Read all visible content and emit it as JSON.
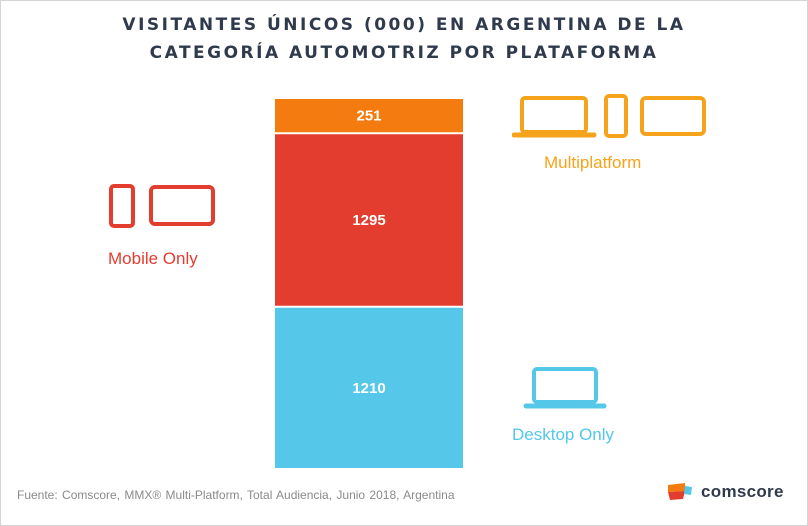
{
  "title_lines": [
    "VISITANTES ÚNICOS (000) EN ARGENTINA DE LA",
    "CATEGORÍA AUTOMOTRIZ POR PLATAFORMA"
  ],
  "chart_data": {
    "type": "bar",
    "stacked": true,
    "unit": "Visitantes únicos (000)",
    "categories": [
      ""
    ],
    "series": [
      {
        "name": "Desktop Only",
        "values": [
          1210
        ],
        "color": "#55c7e8"
      },
      {
        "name": "Mobile Only",
        "values": [
          1295
        ],
        "color": "#e33d30"
      },
      {
        "name": "Multiplatform",
        "values": [
          251
        ],
        "color": "#f47b0f"
      }
    ],
    "data_labels": [
      "1210",
      "1295",
      "251"
    ],
    "legend_placement": "beside-bar",
    "grid": false,
    "axes_visible": false
  },
  "legend": {
    "multiplatform": {
      "label": "Multiplatform",
      "color": "#f5a31a",
      "icons": [
        "laptop-icon",
        "phone-icon",
        "tablet-icon"
      ]
    },
    "mobile_only": {
      "label": "Mobile Only",
      "color": "#e33d30",
      "icons": [
        "phone-icon",
        "tablet-icon"
      ]
    },
    "desktop_only": {
      "label": "Desktop Only",
      "color": "#55c7e8",
      "icons": [
        "laptop-icon"
      ]
    }
  },
  "source": "Fuente: Comscore, MMX® Multi-Platform, Total Audiencia, Junio 2018, Argentina",
  "brand": {
    "name": "comscore",
    "icon": "comscore-logo-icon",
    "colors": [
      "#f47b0f",
      "#e33d30",
      "#55c7e8",
      "#2f3a4c"
    ]
  }
}
